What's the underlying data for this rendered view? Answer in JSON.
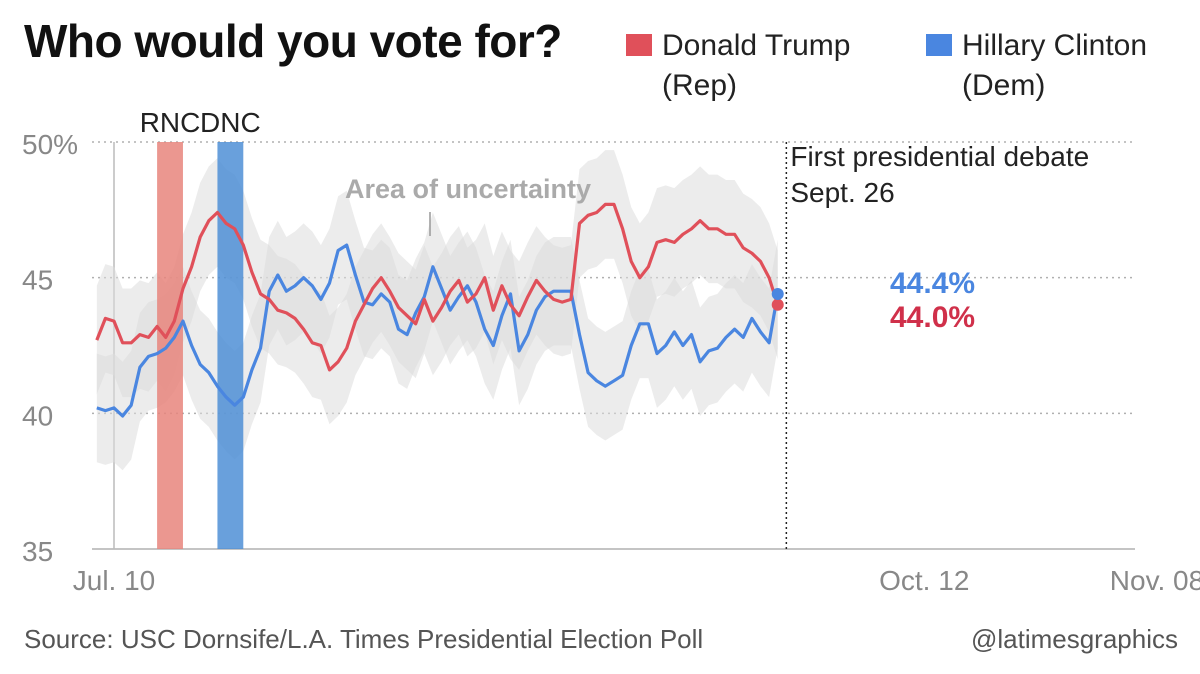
{
  "title": "Who would you vote for?",
  "legend": [
    {
      "line1": "Donald Trump",
      "line2": "(Rep)",
      "color": "#e0505a"
    },
    {
      "line1": "Hillary Clinton",
      "line2": "(Dem)",
      "color": "#4a86e0"
    }
  ],
  "footer": {
    "source": "Source: USC Dornsife/L.A. Times Presidential Election Poll",
    "credit": "@latimesgraphics"
  },
  "chart_data": {
    "type": "line",
    "title": "Who would you vote for?",
    "xlabel": "",
    "ylabel": "",
    "ylim": [
      35,
      50
    ],
    "xlim_days": [
      0,
      121
    ],
    "grid": true,
    "y_ticks": [
      {
        "value": 50,
        "label": "50%"
      },
      {
        "value": 45,
        "label": "45"
      },
      {
        "value": 40,
        "label": "40"
      },
      {
        "value": 35,
        "label": "35"
      }
    ],
    "x_ticks": [
      {
        "day": 0,
        "label": "Jul. 10"
      },
      {
        "day": 94,
        "label": "Oct. 12"
      },
      {
        "day": 121,
        "label": "Nov. 08"
      }
    ],
    "events": [
      {
        "label": "RNC",
        "start_day": 5,
        "end_day": 8,
        "color": "#e8857c"
      },
      {
        "label": "DNC",
        "start_day": 12,
        "end_day": 15,
        "color": "#4f8fd6"
      }
    ],
    "debate": {
      "day": 78,
      "line1": "First presidential debate",
      "line2": "Sept. 26"
    },
    "uncertainty_label": "Area of uncertainty",
    "uncertainty_halfwidth": 2.0,
    "start_day": -2,
    "series": [
      {
        "name": "Donald Trump",
        "party": "Rep",
        "color": "#e0505a",
        "end_label": "44.0%",
        "end_value": 44.0,
        "values": [
          42.7,
          43.5,
          43.4,
          42.6,
          42.6,
          42.9,
          42.8,
          43.2,
          42.8,
          43.4,
          44.6,
          45.4,
          46.5,
          47.1,
          47.4,
          47.0,
          46.8,
          46.2,
          45.2,
          44.4,
          44.2,
          43.8,
          43.7,
          43.5,
          43.1,
          42.6,
          42.5,
          41.6,
          41.9,
          42.4,
          43.4,
          44.0,
          44.6,
          45.0,
          44.5,
          43.9,
          43.6,
          43.3,
          44.2,
          43.4,
          43.9,
          44.5,
          44.9,
          44.1,
          44.4,
          45.0,
          43.8,
          44.7,
          44.0,
          43.6,
          44.3,
          44.9,
          44.5,
          44.2,
          44.1,
          44.2,
          47.0,
          47.3,
          47.4,
          47.7,
          47.7,
          46.8,
          45.6,
          45.0,
          45.4,
          46.3,
          46.4,
          46.3,
          46.6,
          46.8,
          47.1,
          46.8,
          46.8,
          46.6,
          46.6,
          46.1,
          45.9,
          45.6,
          45.0,
          44.0
        ]
      },
      {
        "name": "Hillary Clinton",
        "party": "Dem",
        "color": "#4a86e0",
        "end_label": "44.4%",
        "end_value": 44.4,
        "values": [
          40.2,
          40.1,
          40.2,
          39.9,
          40.3,
          41.7,
          42.1,
          42.2,
          42.4,
          42.8,
          43.4,
          42.5,
          41.8,
          41.5,
          41.0,
          40.6,
          40.3,
          40.6,
          41.6,
          42.4,
          44.5,
          45.1,
          44.5,
          44.7,
          45.0,
          44.7,
          44.2,
          44.8,
          46.0,
          46.2,
          45.1,
          44.1,
          44.0,
          44.4,
          44.1,
          43.1,
          42.9,
          43.7,
          44.3,
          45.4,
          44.6,
          43.8,
          44.3,
          44.7,
          44.1,
          43.1,
          42.5,
          43.6,
          44.4,
          42.3,
          42.9,
          43.8,
          44.3,
          44.5,
          44.5,
          44.5,
          42.9,
          41.5,
          41.2,
          41.0,
          41.2,
          41.4,
          42.5,
          43.3,
          43.3,
          42.2,
          42.5,
          43.0,
          42.5,
          42.9,
          41.9,
          42.3,
          42.4,
          42.8,
          43.1,
          42.8,
          43.5,
          43.0,
          42.6,
          44.4
        ]
      }
    ]
  }
}
